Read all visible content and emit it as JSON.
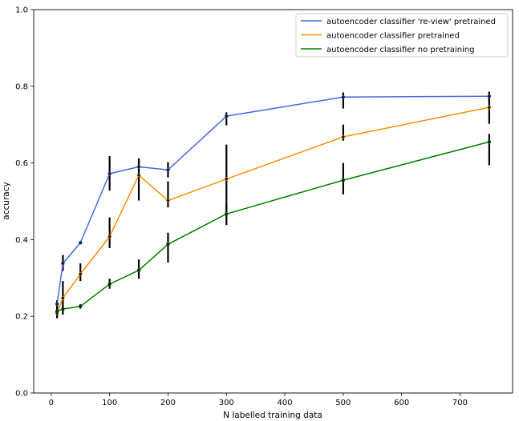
{
  "chart_data": {
    "type": "line",
    "xlabel": "N labelled training data",
    "ylabel": "accuracy",
    "xlim": [
      -30,
      790
    ],
    "ylim": [
      0.0,
      1.0
    ],
    "xticks": [
      0,
      100,
      200,
      300,
      400,
      500,
      600,
      700
    ],
    "yticks": [
      0.0,
      0.2,
      0.4,
      0.6,
      0.8,
      1.0
    ],
    "xtick_labels": [
      "0",
      "100",
      "200",
      "300",
      "400",
      "500",
      "600",
      "700"
    ],
    "ytick_labels": [
      "0.0",
      "0.2",
      "0.4",
      "0.6",
      "0.8",
      "1.0"
    ],
    "grid": false,
    "legend_position": "top-right",
    "x": [
      10,
      20,
      50,
      100,
      150,
      200,
      300,
      500,
      750
    ],
    "series": [
      {
        "name": "autoencoder classifier 're-view' pretrained",
        "color": "#4169e1",
        "values": [
          0.232,
          0.338,
          0.392,
          0.572,
          0.59,
          0.582,
          0.722,
          0.772,
          0.774
        ],
        "err_low": [
          0.222,
          0.318,
          0.388,
          0.528,
          0.568,
          0.562,
          0.698,
          0.742,
          0.758
        ],
        "err_high": [
          0.242,
          0.36,
          0.396,
          0.618,
          0.612,
          0.602,
          0.732,
          0.784,
          0.786
        ]
      },
      {
        "name": "autoencoder classifier pretrained",
        "color": "#ff8c00",
        "values": [
          0.208,
          0.248,
          0.31,
          0.408,
          0.568,
          0.502,
          0.558,
          0.668,
          0.745
        ],
        "err_low": [
          0.198,
          0.208,
          0.292,
          0.378,
          0.502,
          0.484,
          0.468,
          0.658,
          0.702
        ],
        "err_high": [
          0.232,
          0.292,
          0.338,
          0.458,
          0.608,
          0.552,
          0.648,
          0.7,
          0.778
        ]
      },
      {
        "name": "autoencoder classifier no pretraining",
        "color": "#008000",
        "values": [
          0.213,
          0.219,
          0.226,
          0.284,
          0.32,
          0.388,
          0.467,
          0.555,
          0.655
        ],
        "err_low": [
          0.195,
          0.204,
          0.22,
          0.272,
          0.298,
          0.34,
          0.438,
          0.518,
          0.594
        ],
        "err_high": [
          0.228,
          0.238,
          0.232,
          0.298,
          0.348,
          0.418,
          0.492,
          0.6,
          0.676
        ]
      }
    ]
  }
}
